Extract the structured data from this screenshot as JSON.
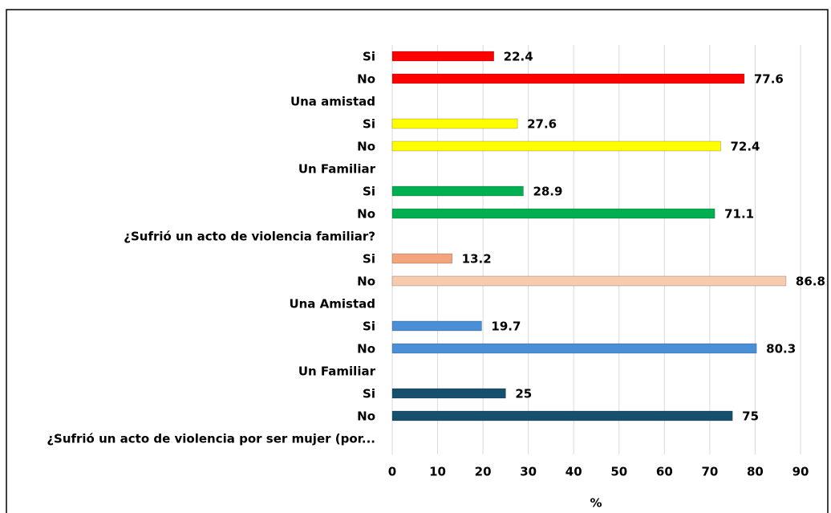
{
  "chart_data": {
    "type": "bar",
    "orientation": "horizontal",
    "categories": [
      "Si",
      "No",
      "Una amistad",
      "Si",
      "No",
      "Un Familiar",
      "Si",
      "No",
      "¿Sufrió un acto de violencia familiar?",
      "Si",
      "No",
      "Una Amistad",
      "Si",
      "No",
      "Un Familiar",
      "Si",
      "No",
      "¿Sufrió un acto de violencia por ser mujer (por..."
    ],
    "values": [
      22.4,
      77.6,
      null,
      27.6,
      72.4,
      null,
      28.9,
      71.1,
      null,
      13.2,
      86.8,
      null,
      19.7,
      80.3,
      null,
      25,
      75,
      null
    ],
    "colors": [
      "#ff0000",
      "#ff0000",
      null,
      "#ffff00",
      "#ffff00",
      null,
      "#00b050",
      "#00b050",
      null,
      "#f4a47c",
      "#f8cbad",
      null,
      "#4a8fd6",
      "#4a8fd6",
      null,
      "#17506e",
      "#17506e",
      null
    ],
    "xlabel": "%",
    "xlim": [
      0,
      90
    ],
    "xticks": [
      0,
      10,
      20,
      30,
      40,
      50,
      60,
      70,
      80,
      90
    ],
    "grid": true
  }
}
